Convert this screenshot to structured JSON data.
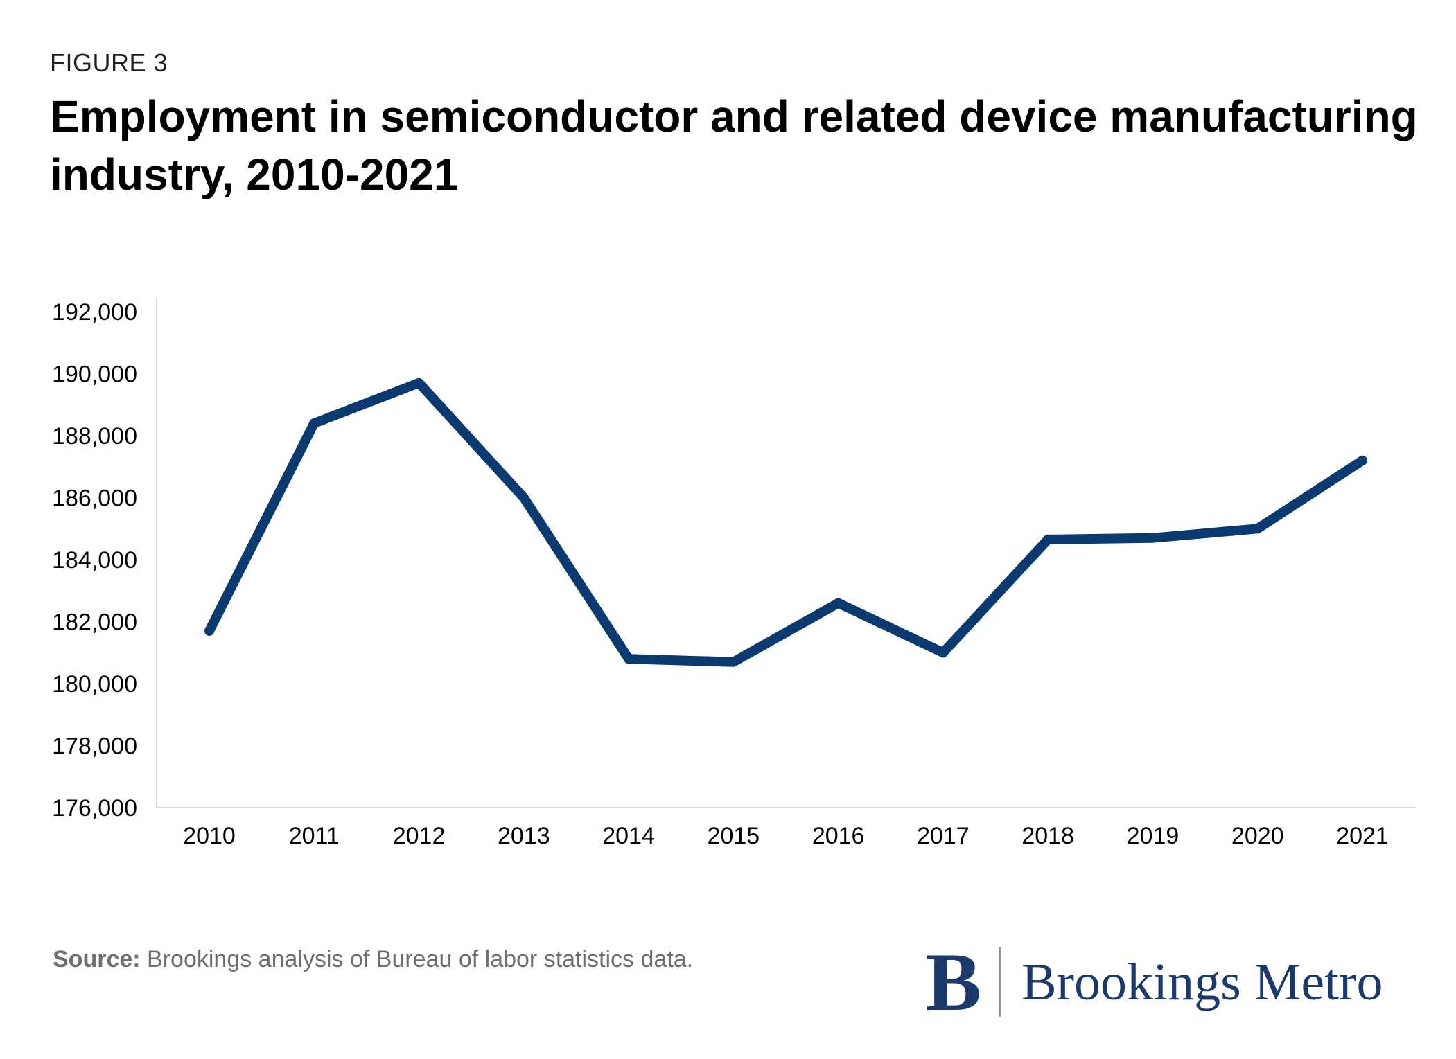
{
  "figure_label": "FIGURE 3",
  "title": "Employment in semiconductor and related device manufacturing industry, 2010-2021",
  "source": {
    "label": "Source:",
    "text": "Brookings analysis of Bureau of labor statistics data."
  },
  "logo": {
    "mark": "B",
    "text": "Brookings Metro"
  },
  "colors": {
    "line": "#0b3a70",
    "axis": "#d9d9d9",
    "text": "#000000"
  },
  "chart_data": {
    "type": "line",
    "title": "Employment in semiconductor and related device manufacturing industry, 2010-2021",
    "xlabel": "",
    "ylabel": "",
    "x": [
      "2010",
      "2011",
      "2012",
      "2013",
      "2014",
      "2015",
      "2016",
      "2017",
      "2018",
      "2019",
      "2020",
      "2021"
    ],
    "series": [
      {
        "name": "Employment",
        "values": [
          181700,
          188400,
          189700,
          186000,
          180800,
          180700,
          182600,
          181000,
          184650,
          184700,
          185000,
          187200
        ]
      }
    ],
    "ylim": [
      176000,
      192000
    ],
    "yticks": [
      176000,
      178000,
      180000,
      182000,
      184000,
      186000,
      188000,
      190000,
      192000
    ],
    "ytick_labels": [
      "176,000",
      "178,000",
      "180,000",
      "182,000",
      "184,000",
      "186,000",
      "188,000",
      "190,000",
      "192,000"
    ],
    "grid": false,
    "legend": "none"
  }
}
